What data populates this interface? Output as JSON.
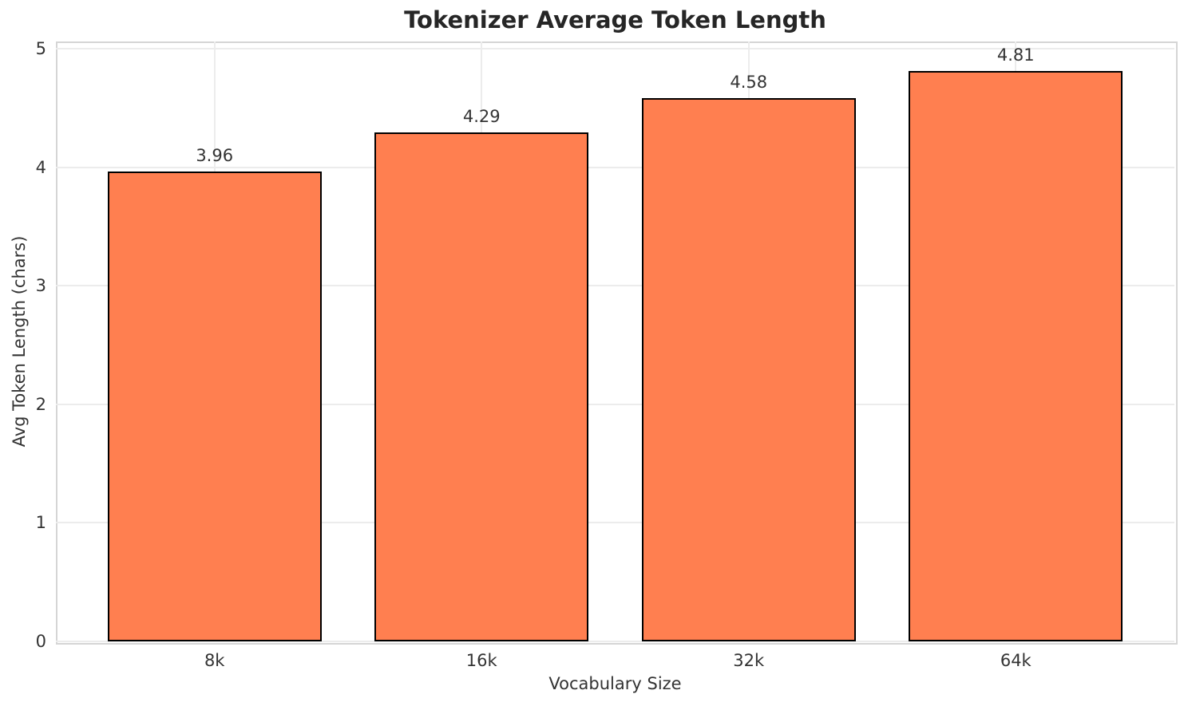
{
  "chart_data": {
    "type": "bar",
    "title": "Tokenizer Average Token Length",
    "categories": [
      "8k",
      "16k",
      "32k",
      "64k"
    ],
    "values": [
      3.96,
      4.29,
      4.58,
      4.81
    ],
    "value_labels": [
      "3.96",
      "4.29",
      "4.58",
      "4.81"
    ],
    "xlabel": "Vocabulary Size",
    "ylabel": "Avg Token Length (chars)",
    "yticks": [
      "0",
      "1",
      "2",
      "3",
      "4",
      "5"
    ],
    "ylim": [
      0,
      5.06
    ],
    "grid": true,
    "legend_position": "none",
    "bar_color": "#ff7f50",
    "bar_edge_color": "#000000",
    "grid_color": "#ececec",
    "spine_color": "#d5d5d5",
    "title_color": "#262626",
    "tick_color": "#333333"
  }
}
